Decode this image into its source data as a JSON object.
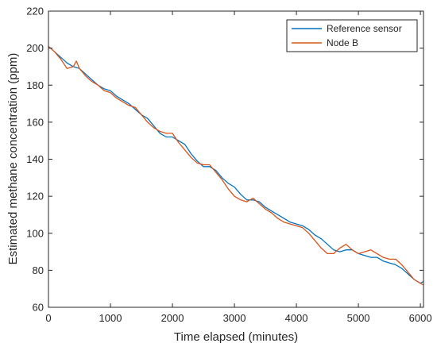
{
  "chart_data": {
    "type": "line",
    "xlabel": "Time elapsed (minutes)",
    "ylabel": "Estimated methane concentration (ppm)",
    "xlim": [
      0,
      6050
    ],
    "ylim": [
      60,
      220
    ],
    "xticks": [
      0,
      1000,
      2000,
      3000,
      4000,
      5000,
      6000
    ],
    "yticks": [
      60,
      80,
      100,
      120,
      140,
      160,
      180,
      200,
      220
    ],
    "grid": false,
    "legend_position": "top-right",
    "series": [
      {
        "name": "Reference sensor",
        "color": "#0072BD",
        "x": [
          0,
          100,
          200,
          300,
          400,
          500,
          600,
          700,
          800,
          900,
          1000,
          1100,
          1200,
          1300,
          1400,
          1500,
          1600,
          1700,
          1800,
          1900,
          2000,
          2100,
          2200,
          2300,
          2400,
          2500,
          2600,
          2700,
          2800,
          2900,
          3000,
          3100,
          3200,
          3300,
          3400,
          3500,
          3600,
          3700,
          3800,
          3900,
          4000,
          4100,
          4200,
          4300,
          4400,
          4500,
          4600,
          4700,
          4800,
          4900,
          5000,
          5100,
          5200,
          5300,
          5400,
          5500,
          5600,
          5700,
          5800,
          5900,
          6000,
          6050
        ],
        "y": [
          201,
          198,
          195,
          192,
          190,
          189,
          186,
          183,
          180,
          178,
          177,
          174,
          172,
          170,
          167,
          164,
          162,
          158,
          154,
          152,
          152,
          150,
          148,
          143,
          139,
          136,
          136,
          134,
          130,
          127,
          125,
          121,
          118,
          118,
          117,
          114,
          112,
          110,
          108,
          106,
          105,
          104,
          102,
          99,
          97,
          94,
          91,
          90,
          91,
          91,
          89,
          88,
          87,
          87,
          85,
          84,
          83,
          81,
          78,
          75,
          73,
          74
        ]
      },
      {
        "name": "Node B",
        "color": "#D95319",
        "x": [
          0,
          100,
          200,
          300,
          400,
          450,
          500,
          600,
          700,
          800,
          900,
          1000,
          1100,
          1200,
          1300,
          1400,
          1500,
          1600,
          1700,
          1800,
          1900,
          2000,
          2100,
          2200,
          2300,
          2400,
          2500,
          2600,
          2700,
          2800,
          2900,
          3000,
          3100,
          3200,
          3300,
          3400,
          3500,
          3600,
          3700,
          3800,
          3900,
          4000,
          4100,
          4200,
          4300,
          4400,
          4500,
          4600,
          4700,
          4800,
          4900,
          5000,
          5100,
          5200,
          5300,
          5400,
          5500,
          5600,
          5700,
          5800,
          5900,
          6000,
          6050
        ],
        "y": [
          201,
          198,
          194,
          189,
          190,
          193,
          189,
          185,
          182,
          180,
          177,
          176,
          173,
          171,
          169,
          168,
          164,
          160,
          157,
          155,
          154,
          154,
          149,
          145,
          141,
          138,
          137,
          137,
          133,
          129,
          124,
          120,
          118,
          117,
          119,
          116,
          113,
          111,
          108,
          106,
          105,
          104,
          103,
          100,
          96,
          92,
          89,
          89,
          92,
          94,
          91,
          89,
          90,
          91,
          89,
          87,
          86,
          86,
          83,
          79,
          75,
          73,
          72
        ]
      }
    ]
  }
}
